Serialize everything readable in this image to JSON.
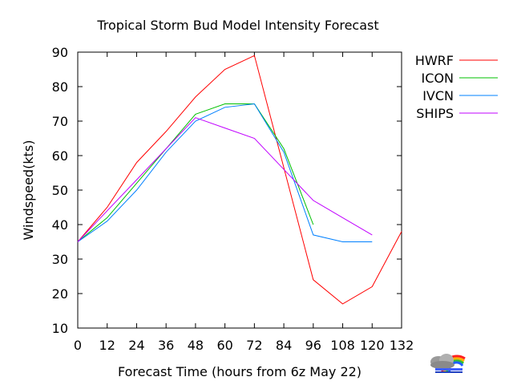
{
  "chart_data": {
    "type": "line",
    "title": "Tropical Storm Bud Model Intensity Forecast",
    "xlabel": "Forecast Time (hours from 6z May 22)",
    "ylabel": "Windspeed(kts)",
    "xlim": [
      0,
      132
    ],
    "ylim": [
      10,
      90
    ],
    "xticks": [
      0,
      12,
      24,
      36,
      48,
      60,
      72,
      84,
      96,
      108,
      120,
      132
    ],
    "yticks": [
      10,
      20,
      30,
      40,
      50,
      60,
      70,
      80,
      90
    ],
    "grid": false,
    "legend_position": "right",
    "series": [
      {
        "name": "HWRF",
        "color": "#ff0000",
        "x": [
          0,
          12,
          24,
          36,
          48,
          60,
          72,
          96,
          108,
          120,
          132
        ],
        "y": [
          35,
          45,
          58,
          67,
          77,
          85,
          89,
          24,
          17,
          22,
          38
        ]
      },
      {
        "name": "ICON",
        "color": "#00c000",
        "x": [
          0,
          12,
          24,
          36,
          48,
          60,
          72,
          84,
          96
        ],
        "y": [
          35,
          42,
          52,
          62,
          72,
          75,
          75,
          62,
          40
        ]
      },
      {
        "name": "IVCN",
        "color": "#0080ff",
        "x": [
          0,
          12,
          24,
          36,
          48,
          60,
          72,
          84,
          96,
          108,
          120
        ],
        "y": [
          35,
          41,
          50,
          61,
          70,
          74,
          75,
          61,
          37,
          35,
          35
        ]
      },
      {
        "name": "SHIPS",
        "color": "#c000ff",
        "x": [
          0,
          12,
          24,
          36,
          48,
          60,
          72,
          84,
          96,
          108,
          120
        ],
        "y": [
          35,
          44,
          53,
          62,
          71,
          68,
          65,
          56,
          47,
          42,
          37
        ]
      }
    ]
  },
  "logo": {
    "name": "weather-logo-icon"
  }
}
